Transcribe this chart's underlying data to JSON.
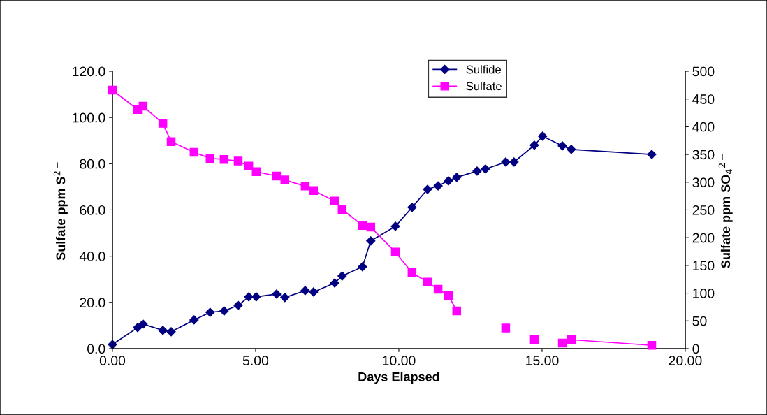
{
  "chart_data": {
    "type": "line",
    "xlabel": "Days Elapsed",
    "ylabel": "Sulfate ppm S$^{2−}$",
    "y2label": "Sulfate ppm SO$_{4}$$^{2−}$",
    "x": [
      0,
      0.88,
      1.07,
      1.76,
      2.05,
      2.85,
      3.41,
      3.9,
      4.39,
      4.76,
      5.02,
      5.73,
      6.02,
      6.73,
      7.02,
      7.76,
      8.02,
      8.73,
      9.02,
      9.88,
      10.46,
      11.0,
      11.37,
      11.73,
      12.02,
      12.73,
      13.02,
      13.73,
      14.02,
      14.73,
      15.02,
      15.71,
      16.02,
      18.83
    ],
    "series": [
      {
        "name": "Sulfide",
        "color": "#000080",
        "marker": "diamond",
        "values": [
          1.8,
          9.1,
          10.6,
          7.9,
          7.3,
          12.4,
          15.7,
          16.3,
          18.7,
          22.4,
          22.4,
          23.6,
          22.1,
          25.1,
          24.5,
          28.4,
          31.4,
          35.4,
          46.6,
          52.9,
          61.1,
          68.9,
          70.4,
          72.6,
          74.1,
          76.8,
          77.7,
          80.7,
          80.7,
          88.0,
          91.9,
          87.7,
          86.2,
          84.0
        ]
      },
      {
        "name": "Sulfate",
        "color": "#ff00ff",
        "marker": "square",
        "axis": "y2",
        "values": [
          466,
          431,
          437,
          406,
          373,
          354,
          343,
          341,
          338,
          329,
          319,
          311,
          304,
          293,
          285,
          266,
          251,
          222,
          219,
          174,
          137,
          120,
          107,
          96,
          68,
          null,
          null,
          37,
          null,
          16,
          null,
          10,
          16,
          6
        ]
      }
    ],
    "xlim": [
      0,
      20
    ],
    "xticks": [
      {
        "value": 0,
        "label": "0.00"
      },
      {
        "value": 5,
        "label": "5.00"
      },
      {
        "value": 10,
        "label": "10.00"
      },
      {
        "value": 15,
        "label": "15.00"
      },
      {
        "value": 20,
        "label": "20.00"
      }
    ],
    "ylim": [
      0,
      120
    ],
    "yticks": [
      {
        "value": 0,
        "label": "0.0"
      },
      {
        "value": 20,
        "label": "20.0"
      },
      {
        "value": 40,
        "label": "40.0"
      },
      {
        "value": 60,
        "label": "60.0"
      },
      {
        "value": 80,
        "label": "80.0"
      },
      {
        "value": 100,
        "label": "100.0"
      },
      {
        "value": 120,
        "label": "120.0"
      }
    ],
    "y2lim": [
      0,
      500
    ],
    "y2ticks": [
      0,
      50,
      100,
      150,
      200,
      250,
      300,
      350,
      400,
      450,
      500
    ],
    "grid": false,
    "legend": "top"
  }
}
